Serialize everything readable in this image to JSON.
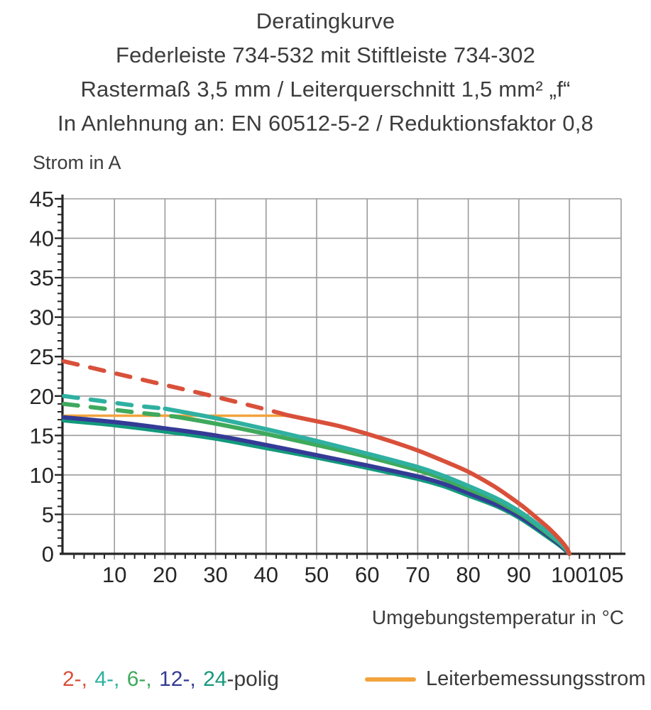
{
  "title": {
    "line1": "Deratingkurve",
    "line2": "Federleiste 734-532 mit Stiftleiste 734-302",
    "line3": "Rastermaß 3,5 mm / Leiterquerschnitt 1,5 mm² „f“",
    "line4": "In Anlehnung an: EN 60512-5-2 / Reduktionsfaktor 0,8"
  },
  "axes": {
    "y_label": "Strom in A",
    "x_label": "Umgebungstemperatur in °C"
  },
  "legend": {
    "poles": [
      {
        "label": "2-,",
        "color": "#d9503a"
      },
      {
        "label": "4-,",
        "color": "#2fb0a1"
      },
      {
        "label": "6-,",
        "color": "#3fa95c"
      },
      {
        "label": "12-,",
        "color": "#343b96"
      },
      {
        "label": "24",
        "color": "#13997c"
      }
    ],
    "suffix": "-polig",
    "conductor_label": "Leiterbemessungsstrom",
    "conductor_color": "#f2a33c"
  },
  "chart_data": {
    "type": "line",
    "title": "Deratingkurve",
    "xlabel": "Umgebungstemperatur in °C",
    "ylabel": "Strom in A",
    "xlim": [
      0,
      110.3
    ],
    "ylim": [
      0,
      45
    ],
    "x_major_ticks": [
      10,
      20,
      30,
      40,
      50,
      60,
      70,
      80,
      90,
      100,
      105
    ],
    "y_major_ticks": [
      0,
      5,
      10,
      15,
      20,
      25,
      30,
      35,
      40,
      45
    ],
    "x_gridline_values": [
      10,
      20,
      30,
      40,
      50,
      60,
      70,
      80,
      90,
      100
    ],
    "y_gridline_values": [
      5,
      10,
      15,
      20,
      25,
      30,
      35,
      40,
      45
    ],
    "x_minor_step": 2,
    "y_minor_step": 1,
    "grid": true,
    "grid_color": "#9b9b9b",
    "axis_color": "#262626",
    "conductor_line": {
      "name": "Leiterbemessungsstrom",
      "value": 17.5,
      "x_start": 0,
      "x_end": 45.5,
      "color": "#f2a33c"
    },
    "series": [
      {
        "name": "2-polig",
        "color": "#d9503a",
        "dashed": [
          [
            0,
            24.4
          ],
          [
            10,
            22.9
          ],
          [
            20,
            21.4
          ],
          [
            30,
            19.9
          ],
          [
            40,
            18.3
          ],
          [
            44,
            17.6
          ]
        ],
        "solid": [
          [
            44,
            17.6
          ],
          [
            50,
            16.8
          ],
          [
            55,
            16.1
          ],
          [
            60,
            15.2
          ],
          [
            65,
            14.2
          ],
          [
            70,
            13.1
          ],
          [
            75,
            11.8
          ],
          [
            80,
            10.4
          ],
          [
            85,
            8.6
          ],
          [
            88,
            7.3
          ],
          [
            91,
            5.9
          ],
          [
            94,
            4.3
          ],
          [
            96,
            3.2
          ],
          [
            98,
            1.9
          ],
          [
            99.4,
            0.8
          ],
          [
            100,
            0
          ]
        ]
      },
      {
        "name": "4-polig",
        "color": "#2fb0a1",
        "dashed": [
          [
            0,
            20.0
          ],
          [
            7,
            19.4
          ],
          [
            14,
            18.8
          ],
          [
            20,
            18.4
          ]
        ],
        "solid": [
          [
            20,
            18.4
          ],
          [
            30,
            17.2
          ],
          [
            40,
            15.8
          ],
          [
            50,
            14.3
          ],
          [
            60,
            12.7
          ],
          [
            70,
            11.0
          ],
          [
            75,
            9.9
          ],
          [
            80,
            8.6
          ],
          [
            85,
            7.2
          ],
          [
            88,
            6.2
          ],
          [
            91,
            5.0
          ],
          [
            94,
            3.6
          ],
          [
            96,
            2.6
          ],
          [
            98,
            1.5
          ],
          [
            99.4,
            0.6
          ],
          [
            100,
            0
          ]
        ]
      },
      {
        "name": "6-polig",
        "color": "#3fa95c",
        "dashed": [
          [
            0,
            19.0
          ],
          [
            8,
            18.4
          ],
          [
            16,
            17.8
          ],
          [
            22,
            17.4
          ]
        ],
        "solid": [
          [
            22,
            17.4
          ],
          [
            30,
            16.5
          ],
          [
            40,
            15.2
          ],
          [
            50,
            13.8
          ],
          [
            60,
            12.3
          ],
          [
            70,
            10.6
          ],
          [
            75,
            9.5
          ],
          [
            80,
            8.2
          ],
          [
            85,
            6.9
          ],
          [
            88,
            5.9
          ],
          [
            91,
            4.8
          ],
          [
            94,
            3.4
          ],
          [
            96,
            2.4
          ],
          [
            98,
            1.4
          ],
          [
            99.4,
            0.5
          ],
          [
            100,
            0
          ]
        ]
      },
      {
        "name": "12-polig",
        "color": "#343b96",
        "dashed": [],
        "solid": [
          [
            0,
            17.3
          ],
          [
            10,
            16.7
          ],
          [
            20,
            15.9
          ],
          [
            30,
            15.0
          ],
          [
            40,
            13.8
          ],
          [
            50,
            12.5
          ],
          [
            60,
            11.2
          ],
          [
            70,
            9.8
          ],
          [
            75,
            8.9
          ],
          [
            80,
            7.7
          ],
          [
            85,
            6.4
          ],
          [
            88,
            5.5
          ],
          [
            91,
            4.4
          ],
          [
            94,
            3.1
          ],
          [
            96,
            2.2
          ],
          [
            98,
            1.2
          ],
          [
            99.4,
            0.4
          ],
          [
            100,
            0
          ]
        ]
      },
      {
        "name": "24-polig",
        "color": "#13997c",
        "dashed": [],
        "solid": [
          [
            0,
            16.9
          ],
          [
            10,
            16.3
          ],
          [
            20,
            15.5
          ],
          [
            30,
            14.6
          ],
          [
            40,
            13.4
          ],
          [
            50,
            12.2
          ],
          [
            60,
            10.9
          ],
          [
            70,
            9.5
          ],
          [
            75,
            8.6
          ],
          [
            80,
            7.4
          ],
          [
            85,
            6.2
          ],
          [
            88,
            5.3
          ],
          [
            91,
            4.2
          ],
          [
            94,
            2.9
          ],
          [
            96,
            2.0
          ],
          [
            98,
            1.1
          ],
          [
            99.4,
            0.35
          ],
          [
            100,
            0
          ]
        ]
      }
    ]
  }
}
